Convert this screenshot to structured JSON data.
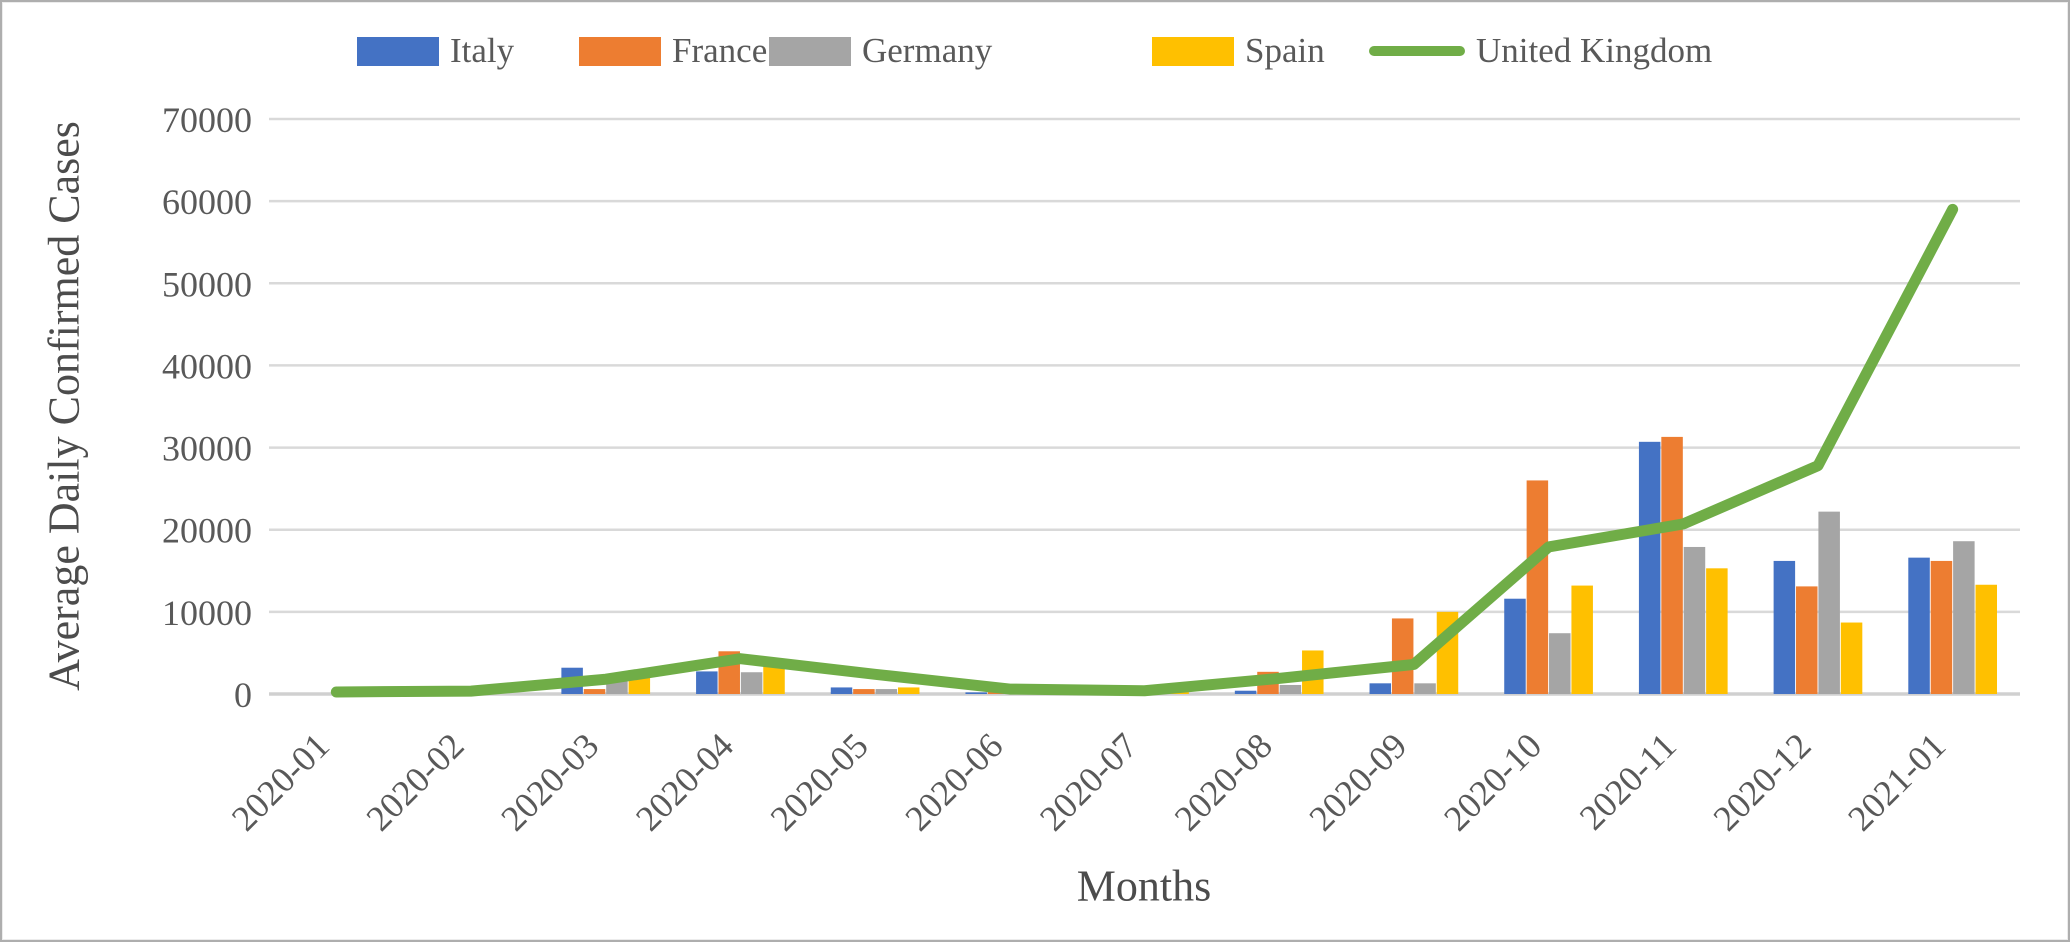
{
  "chart_data": {
    "type": "combo-bar-line",
    "title": "",
    "xlabel": "Months",
    "ylabel": "Average Daily Confirmed Cases",
    "ylim": [
      0,
      70000
    ],
    "yticks": [
      0,
      10000,
      20000,
      30000,
      40000,
      50000,
      60000,
      70000
    ],
    "grid": true,
    "legend_position": "top",
    "categories": [
      "2020-01",
      "2020-02",
      "2020-03",
      "2020-04",
      "2020-05",
      "2020-06",
      "2020-07",
      "2020-08",
      "2020-09",
      "2020-10",
      "2020-11",
      "2020-12",
      "2021-01"
    ],
    "bar_series": [
      {
        "name": "Italy",
        "color": "#4472C4",
        "values": [
          0,
          0,
          3200,
          2750,
          800,
          200,
          200,
          400,
          1300,
          11600,
          30700,
          16200,
          16600
        ]
      },
      {
        "name": "France",
        "color": "#ED7D31",
        "values": [
          0,
          0,
          600,
          5200,
          600,
          500,
          350,
          2700,
          9200,
          26000,
          31300,
          13100,
          16200
        ]
      },
      {
        "name": "Germany",
        "color": "#A5A5A5",
        "values": [
          0,
          0,
          1800,
          2650,
          600,
          250,
          300,
          1100,
          1300,
          7400,
          17900,
          22200,
          18600
        ]
      },
      {
        "name": "Spain",
        "color": "#FFC000",
        "values": [
          0,
          0,
          2900,
          3500,
          800,
          250,
          400,
          5300,
          10000,
          13200,
          15300,
          8700,
          13300
        ]
      }
    ],
    "line_series": [
      {
        "name": "United Kingdom",
        "color": "#70AD47",
        "values": [
          250,
          350,
          1800,
          4300,
          2400,
          600,
          400,
          1900,
          3600,
          17900,
          20700,
          27800,
          59000
        ]
      }
    ]
  },
  "colors": {
    "gridline": "#D9D9D9",
    "axis_line": "#D0D0D0",
    "tick_text": "#595959",
    "axis_title_text": "#4C4C4C",
    "background": "#FFFFFF",
    "frame_border": "#AEAEAE"
  }
}
